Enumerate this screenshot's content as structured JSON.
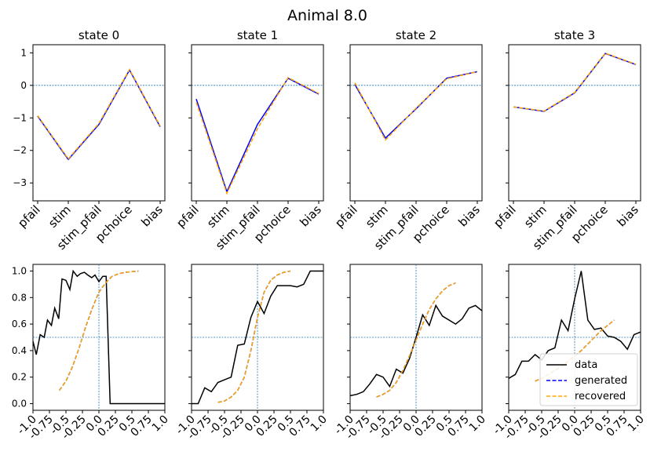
{
  "figure": {
    "title": "Animal 8.0"
  },
  "chart_data": [
    {
      "type": "line",
      "panel": "state 0",
      "title": "state 0",
      "categories": [
        "pfail",
        "stim",
        "stim_pfail",
        "pchoice",
        "bias"
      ],
      "ylim": [
        -3.55,
        1.25
      ],
      "yticks": [
        1,
        0,
        -1,
        -2,
        -3
      ],
      "ytick_labels": [
        "1",
        "0",
        "−1",
        "−2",
        "−3"
      ],
      "hline": 0,
      "series": [
        {
          "name": "generated",
          "color": "#0000ff",
          "style": "solid",
          "values": [
            -0.95,
            -2.28,
            -1.2,
            0.47,
            -1.27
          ]
        },
        {
          "name": "recovered",
          "color": "#ffa500",
          "style": "dashed",
          "values": [
            -0.93,
            -2.26,
            -1.17,
            0.49,
            -1.25
          ]
        }
      ]
    },
    {
      "type": "line",
      "panel": "state 1",
      "title": "state 1",
      "categories": [
        "pfail",
        "stim",
        "stim_pfail",
        "pchoice",
        "bias"
      ],
      "ylim": [
        -3.55,
        1.25
      ],
      "yticks": [
        1,
        0,
        -1,
        -2,
        -3
      ],
      "ytick_labels": [
        "1",
        "0",
        "−1",
        "−2",
        "−3"
      ],
      "hline": 0,
      "series": [
        {
          "name": "generated",
          "color": "#0000ff",
          "style": "solid",
          "values": [
            -0.42,
            -3.27,
            -1.2,
            0.22,
            -0.27
          ]
        },
        {
          "name": "recovered",
          "color": "#ffa500",
          "style": "dashed",
          "values": [
            -0.52,
            -3.32,
            -1.33,
            0.24,
            -0.25
          ]
        }
      ]
    },
    {
      "type": "line",
      "panel": "state 2",
      "title": "state 2",
      "categories": [
        "pfail",
        "stim",
        "stim_pfail",
        "pchoice",
        "bias"
      ],
      "ylim": [
        -3.55,
        1.25
      ],
      "yticks": [
        1,
        0,
        -1,
        -2,
        -3
      ],
      "ytick_labels": [
        "1",
        "0",
        "−1",
        "−2",
        "−3"
      ],
      "hline": 0,
      "series": [
        {
          "name": "generated",
          "color": "#0000ff",
          "style": "solid",
          "values": [
            0.03,
            -1.62,
            -0.72,
            0.22,
            0.42
          ]
        },
        {
          "name": "recovered",
          "color": "#ffa500",
          "style": "dashed",
          "values": [
            0.08,
            -1.68,
            -0.7,
            0.2,
            0.42
          ]
        }
      ]
    },
    {
      "type": "line",
      "panel": "state 3",
      "title": "state 3",
      "categories": [
        "pfail",
        "stim",
        "stim_pfail",
        "pchoice",
        "bias"
      ],
      "ylim": [
        -3.55,
        1.25
      ],
      "yticks": [
        1,
        0,
        -1,
        -2,
        -3
      ],
      "ytick_labels": [
        "1",
        "0",
        "−1",
        "−2",
        "−3"
      ],
      "hline": 0,
      "series": [
        {
          "name": "generated",
          "color": "#0000ff",
          "style": "solid",
          "values": [
            -0.66,
            -0.8,
            -0.23,
            0.98,
            0.64
          ]
        },
        {
          "name": "recovered",
          "color": "#ffa500",
          "style": "dashed",
          "values": [
            -0.66,
            -0.79,
            -0.22,
            0.99,
            0.65
          ]
        }
      ]
    },
    {
      "type": "line",
      "panel": "state 0 psychometric",
      "xlim": [
        -1.0,
        1.0
      ],
      "ylim": [
        -0.05,
        1.05
      ],
      "xticks": [
        -1.0,
        -0.75,
        -0.5,
        -0.25,
        0.0,
        0.25,
        0.5,
        0.75,
        1.0
      ],
      "xtick_labels": [
        "-1.0",
        "-0.75",
        "-0.5",
        "-0.25",
        "0.0",
        "0.25",
        "0.5",
        "0.75",
        "1.0"
      ],
      "yticks": [
        0.0,
        0.2,
        0.4,
        0.6,
        0.8,
        1.0
      ],
      "ytick_labels": [
        "0.0",
        "0.2",
        "0.4",
        "0.6",
        "0.8",
        "1.0"
      ],
      "hline": 0.5,
      "vline": 0.0,
      "x": [
        -1.0,
        -0.9,
        -0.8,
        -0.7,
        -0.6,
        -0.5,
        -0.4,
        -0.3,
        -0.2,
        -0.1,
        0.0,
        0.1,
        0.2,
        0.3,
        0.4,
        0.5,
        0.6,
        0.7,
        0.8,
        0.9,
        1.0
      ],
      "series": [
        {
          "name": "data",
          "color": "#000000",
          "style": "solid",
          "x": [
            -1.0,
            -0.95,
            -0.89,
            -0.83,
            -0.78,
            -0.72,
            -0.67,
            -0.61,
            -0.56,
            -0.5,
            -0.44,
            -0.39,
            -0.33,
            -0.28,
            -0.22,
            -0.17,
            -0.11,
            -0.06,
            0.0,
            0.06,
            0.11,
            0.17,
            0.22,
            0.28,
            0.33,
            0.39,
            0.44,
            0.5,
            0.56,
            0.61,
            0.67,
            0.72,
            0.78,
            0.83,
            0.89,
            0.94,
            1.0
          ],
          "values": [
            0.47,
            0.37,
            0.52,
            0.5,
            0.63,
            0.59,
            0.72,
            0.64,
            0.94,
            0.93,
            0.86,
            1.0,
            0.96,
            0.98,
            0.99,
            0.97,
            0.95,
            0.97,
            0.92,
            0.96,
            0.96,
            0.0,
            0.0,
            0.0,
            0.0,
            0.0,
            0.0,
            0.0,
            0.0,
            0.0,
            0.0,
            0.0,
            0.0,
            0.0,
            0.0,
            0.0,
            0.0
          ]
        },
        {
          "name": "generated",
          "color": "#0000ff",
          "style": "dashed",
          "x": [
            -0.6,
            -0.5,
            -0.4,
            -0.3,
            -0.2,
            -0.1,
            0.0,
            0.1,
            0.2,
            0.3,
            0.4,
            0.5,
            0.6
          ],
          "values": [
            0.1,
            0.17,
            0.28,
            0.42,
            0.58,
            0.72,
            0.84,
            0.91,
            0.96,
            0.98,
            0.99,
            0.995,
            1.0
          ]
        },
        {
          "name": "recovered",
          "color": "#ffa500",
          "style": "dashed",
          "x": [
            -0.6,
            -0.5,
            -0.4,
            -0.3,
            -0.2,
            -0.1,
            0.0,
            0.1,
            0.2,
            0.3,
            0.4,
            0.5,
            0.6
          ],
          "values": [
            0.1,
            0.17,
            0.28,
            0.42,
            0.58,
            0.72,
            0.84,
            0.91,
            0.96,
            0.98,
            0.99,
            0.995,
            1.0
          ]
        }
      ]
    },
    {
      "type": "line",
      "panel": "state 1 psychometric",
      "xlim": [
        -1.0,
        1.0
      ],
      "ylim": [
        -0.05,
        1.05
      ],
      "xticks": [
        -1.0,
        -0.75,
        -0.5,
        -0.25,
        0.0,
        0.25,
        0.5,
        0.75,
        1.0
      ],
      "xtick_labels": [
        "-1.0",
        "-0.75",
        "-0.5",
        "-0.25",
        "0.0",
        "0.25",
        "0.5",
        "0.75",
        "1.0"
      ],
      "hline": 0.5,
      "vline": 0.0,
      "series": [
        {
          "name": "data",
          "color": "#000000",
          "style": "solid",
          "x": [
            -1.0,
            -0.9,
            -0.8,
            -0.7,
            -0.6,
            -0.5,
            -0.4,
            -0.3,
            -0.2,
            -0.1,
            0.0,
            0.1,
            0.2,
            0.3,
            0.4,
            0.5,
            0.6,
            0.7,
            0.8,
            0.9,
            1.0
          ],
          "values": [
            0.0,
            0.0,
            0.12,
            0.09,
            0.16,
            0.18,
            0.2,
            0.44,
            0.45,
            0.65,
            0.77,
            0.68,
            0.81,
            0.89,
            0.89,
            0.89,
            0.88,
            0.9,
            1.0,
            1.0,
            1.0
          ]
        },
        {
          "name": "generated",
          "color": "#0000ff",
          "style": "dashed",
          "x": [
            -0.6,
            -0.5,
            -0.4,
            -0.3,
            -0.2,
            -0.1,
            0.0,
            0.1,
            0.2,
            0.3,
            0.4,
            0.5
          ],
          "values": [
            0.01,
            0.02,
            0.05,
            0.1,
            0.2,
            0.4,
            0.65,
            0.84,
            0.93,
            0.97,
            0.99,
            1.0
          ]
        },
        {
          "name": "recovered",
          "color": "#ffa500",
          "style": "dashed",
          "x": [
            -0.6,
            -0.5,
            -0.4,
            -0.3,
            -0.2,
            -0.1,
            0.0,
            0.1,
            0.2,
            0.3,
            0.4,
            0.5
          ],
          "values": [
            0.01,
            0.02,
            0.05,
            0.1,
            0.2,
            0.4,
            0.65,
            0.84,
            0.93,
            0.97,
            0.99,
            1.0
          ]
        }
      ]
    },
    {
      "type": "line",
      "panel": "state 2 psychometric",
      "xlim": [
        -1.0,
        1.0
      ],
      "ylim": [
        -0.05,
        1.05
      ],
      "xticks": [
        -1.0,
        -0.75,
        -0.5,
        -0.25,
        0.0,
        0.25,
        0.5,
        0.75,
        1.0
      ],
      "xtick_labels": [
        "-1.0",
        "-0.75",
        "-0.5",
        "-0.25",
        "0.0",
        "0.25",
        "0.5",
        "0.75",
        "1.0"
      ],
      "hline": 0.5,
      "vline": 0.0,
      "series": [
        {
          "name": "data",
          "color": "#000000",
          "style": "solid",
          "x": [
            -1.0,
            -0.9,
            -0.8,
            -0.7,
            -0.6,
            -0.5,
            -0.4,
            -0.3,
            -0.2,
            -0.1,
            0.0,
            0.1,
            0.2,
            0.3,
            0.4,
            0.5,
            0.6,
            0.7,
            0.8,
            0.9,
            1.0
          ],
          "values": [
            0.06,
            0.07,
            0.09,
            0.15,
            0.22,
            0.2,
            0.13,
            0.26,
            0.23,
            0.34,
            0.5,
            0.67,
            0.59,
            0.74,
            0.66,
            0.63,
            0.6,
            0.64,
            0.72,
            0.74,
            0.7
          ]
        },
        {
          "name": "generated",
          "color": "#0000ff",
          "style": "dashed",
          "x": [
            -0.6,
            -0.5,
            -0.4,
            -0.3,
            -0.2,
            -0.1,
            0.0,
            0.1,
            0.2,
            0.3,
            0.4,
            0.5,
            0.6
          ],
          "values": [
            0.05,
            0.07,
            0.1,
            0.16,
            0.25,
            0.36,
            0.48,
            0.6,
            0.71,
            0.79,
            0.85,
            0.89,
            0.91
          ]
        },
        {
          "name": "recovered",
          "color": "#ffa500",
          "style": "dashed",
          "x": [
            -0.6,
            -0.5,
            -0.4,
            -0.3,
            -0.2,
            -0.1,
            0.0,
            0.1,
            0.2,
            0.3,
            0.4,
            0.5,
            0.6
          ],
          "values": [
            0.05,
            0.07,
            0.1,
            0.16,
            0.25,
            0.36,
            0.48,
            0.6,
            0.71,
            0.79,
            0.85,
            0.89,
            0.91
          ]
        }
      ]
    },
    {
      "type": "line",
      "panel": "state 3 psychometric",
      "xlim": [
        -1.0,
        1.0
      ],
      "ylim": [
        -0.05,
        1.05
      ],
      "xticks": [
        -1.0,
        -0.75,
        -0.5,
        -0.25,
        0.0,
        0.25,
        0.5,
        0.75,
        1.0
      ],
      "xtick_labels": [
        "-1.0",
        "-0.75",
        "-0.5",
        "-0.25",
        "0.0",
        "0.25",
        "0.5",
        "0.75",
        "1.0"
      ],
      "hline": 0.5,
      "vline": 0.0,
      "legend": {
        "position": "lower-right",
        "entries": [
          "data",
          "generated",
          "recovered"
        ]
      },
      "series": [
        {
          "name": "data",
          "color": "#000000",
          "style": "solid",
          "x": [
            -1.0,
            -0.9,
            -0.8,
            -0.7,
            -0.6,
            -0.5,
            -0.4,
            -0.3,
            -0.2,
            -0.1,
            0.0,
            0.1,
            0.2,
            0.3,
            0.4,
            0.5,
            0.6,
            0.7,
            0.8,
            0.9,
            1.0
          ],
          "values": [
            0.19,
            0.22,
            0.32,
            0.32,
            0.37,
            0.33,
            0.4,
            0.42,
            0.63,
            0.55,
            0.79,
            1.0,
            0.63,
            0.56,
            0.57,
            0.51,
            0.5,
            0.47,
            0.41,
            0.52,
            0.54
          ]
        },
        {
          "name": "generated",
          "color": "#0000ff",
          "style": "dashed",
          "x": [
            -0.6,
            -0.5,
            -0.4,
            -0.3,
            -0.2,
            -0.1,
            0.0,
            0.1,
            0.2,
            0.3,
            0.4,
            0.5,
            0.6
          ],
          "values": [
            0.17,
            0.19,
            0.22,
            0.25,
            0.28,
            0.32,
            0.36,
            0.4,
            0.45,
            0.5,
            0.55,
            0.59,
            0.63
          ]
        },
        {
          "name": "recovered",
          "color": "#ffa500",
          "style": "dashed",
          "x": [
            -0.6,
            -0.5,
            -0.4,
            -0.3,
            -0.2,
            -0.1,
            0.0,
            0.1,
            0.2,
            0.3,
            0.4,
            0.5,
            0.6
          ],
          "values": [
            0.17,
            0.19,
            0.22,
            0.25,
            0.28,
            0.32,
            0.36,
            0.4,
            0.45,
            0.5,
            0.55,
            0.59,
            0.63
          ]
        }
      ]
    }
  ]
}
